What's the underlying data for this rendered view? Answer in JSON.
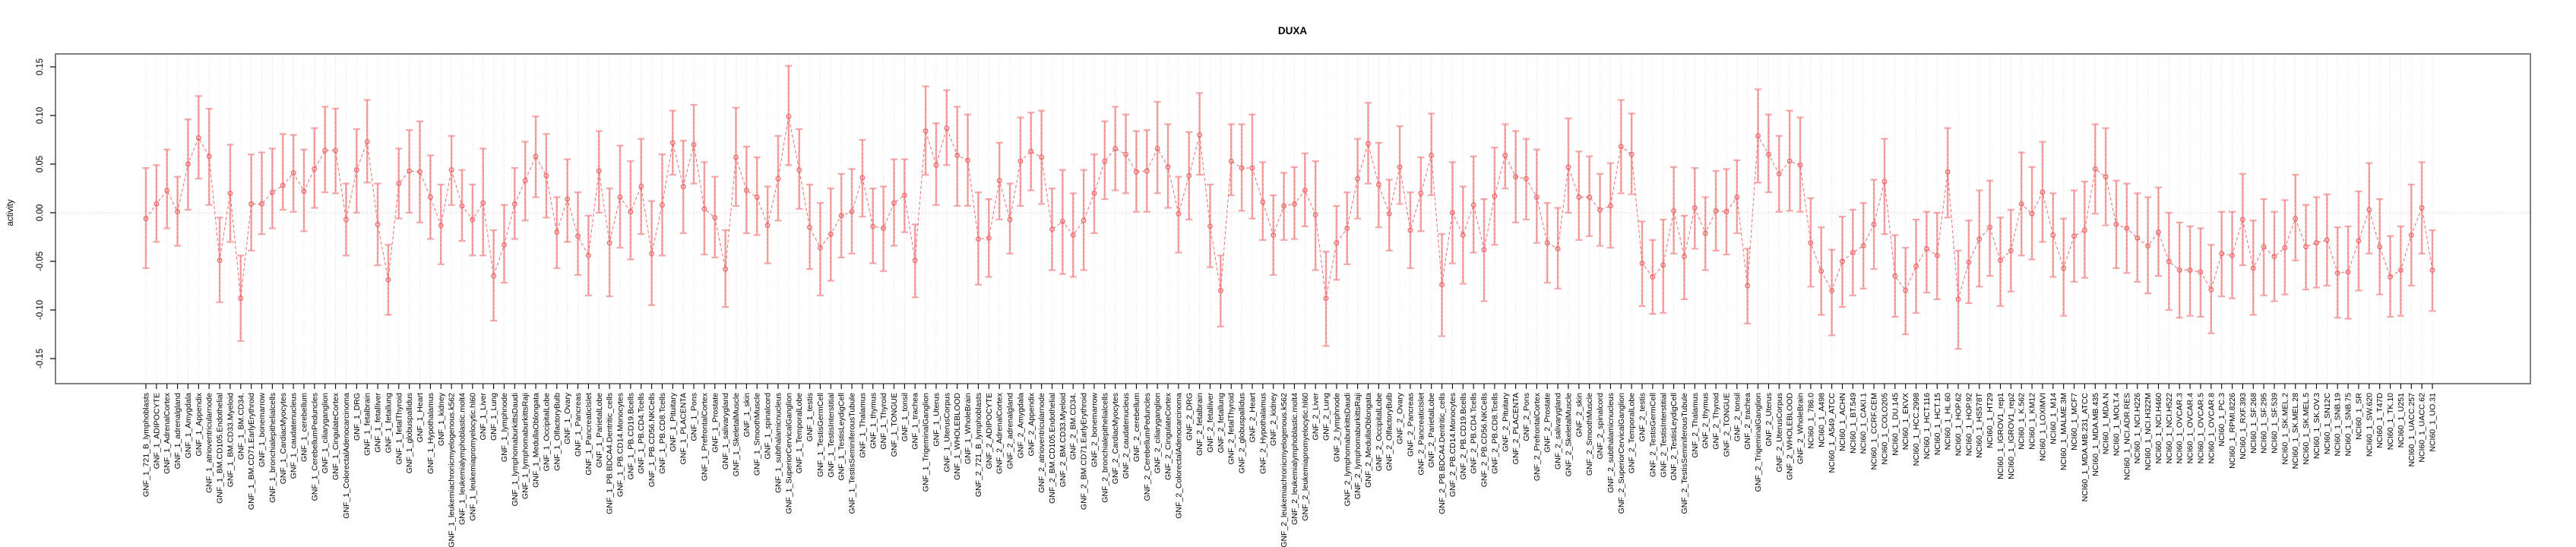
{
  "chart_data": {
    "type": "line",
    "subtype": "points-with-errorbars",
    "title": "DUXA",
    "xlabel": "",
    "ylabel": "activity",
    "yticks": [
      0.15,
      0.1,
      0.05,
      0.0,
      -0.05,
      -0.1,
      -0.15
    ],
    "ylim": [
      -0.176,
      0.163
    ],
    "grid": "vertical-dotted-per-category-plus-zero-line",
    "legend_position": "none",
    "colors": {
      "point": "#ee6a6a",
      "line": "#ee6a6a",
      "errorbar": "#f5a6a6",
      "errorbar_dash": "#ea8080",
      "gridline": "#d4d4d4",
      "zeroline": "#bdbdbd",
      "box": "#808080",
      "text": "#000000"
    },
    "categories": [
      "GNF_1_721_B_lymphoblasts",
      "GNF_1_ADIPOCYTE",
      "GNF_1_AdrenalCortex",
      "GNF_1_adrenalgland",
      "GNF_1_Amygdala",
      "GNF_1_Appendix",
      "GNF_1_atrioventricularnode",
      "GNF_1_BM.CD105.Endothelial",
      "GNF_1_BM.CD33.Myeloid",
      "GNF_1_BM.CD34.",
      "GNF_1_BM.CD71.EarlyErythroid",
      "GNF_1_bonemarrow",
      "GNF_1_bronchialepithelialcells",
      "GNF_1_CardiacMyocytes",
      "GNF_1_caudatenucleus",
      "GNF_1_cerebellum",
      "GNF_1_CerebellumPeduncles",
      "GNF_1_ciliaryganglion",
      "GNF_1_CingulateCortex",
      "GNF_1_ColorectalAdenocarcinoma",
      "GNF_1_DRG",
      "GNF_1_fetalbrain",
      "GNF_1_fetalliver",
      "GNF_1_fetallung",
      "GNF_1_fetalThyroid",
      "GNF_1_globuspallidus",
      "GNF_1_Heart",
      "GNF_1_Hypothalamus",
      "GNF_1_kidney",
      "GNF_1_leukemiachronicmyelogenous.k562",
      "GNF_1_leukemialymphoblastic.molt4",
      "GNF_1_leukemiapromyelocytic.hl60",
      "GNF_1_Liver",
      "GNF_1_Lung",
      "GNF_1_lymphnode",
      "GNF_1_lymphomaburkittsDaudi",
      "GNF_1_lymphomaburkittsRaji",
      "GNF_1_MedullaOblongata",
      "GNF_1_OccipitalLobe",
      "GNF_1_OlfactoryBulb",
      "GNF_1_Ovary",
      "GNF_1_Pancreas",
      "GNF_1_PancreaticIslet",
      "GNF_1_ParietalLobe",
      "GNF_1_PB.BDCA4.Dentritic_cells",
      "GNF_1_PB.CD14.Monocytes",
      "GNF_1_PB.CD19.Bcells",
      "GNF_1_PB.CD4.Tcells",
      "GNF_1_PB.CD56.NKCells",
      "GNF_1_PB.CD8.Tcells",
      "GNF_1_Pituitary",
      "GNF_1_PLACENTA",
      "GNF_1_Pons",
      "GNF_1_PrefrontalCortex",
      "GNF_1_Prostate",
      "GNF_1_salivarygland",
      "GNF_1_SkeletalMuscle",
      "GNF_1_skin",
      "GNF_1_SmoothMuscle",
      "GNF_1_spinalcord",
      "GNF_1_subthalamicnucleus",
      "GNF_1_SuperiorCervicalGanglion",
      "GNF_1_TemporalLobe",
      "GNF_1_testis",
      "GNF_1_TestisGermCell",
      "GNF_1_TestisInterstitial",
      "GNF_1_TestisLeydigCell",
      "GNF_1_TestisSeminiferousTubule",
      "GNF_1_Thalamus",
      "GNF_1_thymus",
      "GNF_1_Thyroid",
      "GNF_1_TONGUE",
      "GNF_1_tonsil",
      "GNF_1_trachea",
      "GNF_1_TrigeminalGanglion",
      "GNF_1_Uterus",
      "GNF_1_UterusCorpus",
      "GNF_1_WHOLEBLOOD",
      "GNF_1_WholeBrain",
      "GNF_2_721_B_lymphoblasts",
      "GNF_2_ADIPOCYTE",
      "GNF_2_AdrenalCortex",
      "GNF_2_adrenalgland",
      "GNF_2_Amygdala",
      "GNF_2_Appendix",
      "GNF_2_atrioventricularnode",
      "GNF_2_BM.CD105.Endothelial",
      "GNF_2_BM.CD33.Myeloid",
      "GNF_2_BM.CD34.",
      "GNF_2_BM.CD71.EarlyErythroid",
      "GNF_2_bonemarrow",
      "GNF_2_bronchialepithelialcells",
      "GNF_2_CardiacMyocytes",
      "GNF_2_caudatenucleus",
      "GNF_2_cerebellum",
      "GNF_2_CerebellumPeduncles",
      "GNF_2_ciliaryganglion",
      "GNF_2_CingulateCortex",
      "GNF_2_ColorectalAdenocarcinoma",
      "GNF_2_DRG",
      "GNF_2_fetalbrain",
      "GNF_2_fetalliver",
      "GNF_2_fetallung",
      "GNF_2_fetalThyroid",
      "GNF_2_globuspallidus",
      "GNF_2_Heart",
      "GNF_2_Hypothalamus",
      "GNF_2_kidney",
      "GNF_2_leukemiachronicmyelogenous.k562",
      "GNF_2_leukemialymphoblastic.molt4",
      "GNF_2_leukemiapromyelocytic.hl60",
      "GNF_2_Liver",
      "GNF_2_Lung",
      "GNF_2_lymphnode",
      "GNF_2_lymphomaburkittsDaudi",
      "GNF_2_lymphomaburkittsRaji",
      "GNF_2_MedullaOblongata",
      "GNF_2_OccipitalLobe",
      "GNF_2_OlfactoryBulb",
      "GNF_2_Ovary",
      "GNF_2_Pancreas",
      "GNF_2_PancreaticIslet",
      "GNF_2_ParietalLobe",
      "GNF_2_PB.BDCA4.Dentritic_cells",
      "GNF_2_PB.CD14.Monocytes",
      "GNF_2_PB.CD19.Bcells",
      "GNF_2_PB.CD4.Tcells",
      "GNF_2_PB.CD56.NKCells",
      "GNF_2_PB.CD8.Tcells",
      "GNF_2_Pituitary",
      "GNF_2_PLACENTA",
      "GNF_2_Pons",
      "GNF_2_PrefrontalCortex",
      "GNF_2_Prostate",
      "GNF_2_salivarygland",
      "GNF_2_SkeletalMuscle",
      "GNF_2_skin",
      "GNF_2_SmoothMuscle",
      "GNF_2_spinalcord",
      "GNF_2_subthalamicnucleus",
      "GNF_2_SuperiorCervicalGanglion",
      "GNF_2_TemporalLobe",
      "GNF_2_testis",
      "GNF_2_TestisGermCell",
      "GNF_2_TestisInterstitial",
      "GNF_2_TestisLeydigCell",
      "GNF_2_TestisSeminiferousTubule",
      "GNF_2_Thalamus",
      "GNF_2_thymus",
      "GNF_2_Thyroid",
      "GNF_2_TONGUE",
      "GNF_2_tonsil",
      "GNF_2_trachea",
      "GNF_2_TrigeminalGanglion",
      "GNF_2_Uterus",
      "GNF_2_UterusCorpus",
      "GNF_2_WHOLEBLOOD",
      "GNF_2_WholeBrain",
      "NCI60_1_786.0",
      "NCI60_1_A498",
      "NCI60_1_A549_ATCC",
      "NCI60_1_ACHN",
      "NCI60_1_BT.549",
      "NCI60_1_CAKI.1",
      "NCI60_1_CCRF.CEM",
      "NCI60_1_COLO205",
      "NCI60_1_DU.145",
      "NCI60_1_EKVX",
      "NCI60_1_HCC.2998",
      "NCI60_1_HCT.116",
      "NCI60_1_HCT.15",
      "NCI60_1_HL.60",
      "NCI60_1_HOP.62",
      "NCI60_1_HOP.92",
      "NCI60_1_HS578T",
      "NCI60_1_HT29",
      "NCI60_1_IGROV1_rep1",
      "NCI60_1_IGROV1_rep2",
      "NCI60_1_K.562",
      "NCI60_1_KM12",
      "NCI60_1_LOXIMVI",
      "NCI60_1_M14",
      "NCI60_1_MALME.3M",
      "NCI60_1_MCF7",
      "NCI60_1_MDA.MB.231_ATCC",
      "NCI60_1_MDA.MB.435",
      "NCI60_1_MDA.N",
      "NCI60_1_MOLT.4",
      "NCI60_1_NCI.ADR.RES",
      "NCI60_1_NCI.H226",
      "NCI60_1_NCI.H322M",
      "NCI60_1_NCI.H460",
      "NCI60_1_NCI.H522",
      "NCI60_1_OVCAR.3",
      "NCI60_1_OVCAR.4",
      "NCI60_1_OVCAR.5",
      "NCI60_1_OVCAR.8",
      "NCI60_1_PC.3",
      "NCI60_1_RPMI.8226",
      "NCI60_1_RXF.393",
      "NCI60_1_SF.268",
      "NCI60_1_SF.295",
      "NCI60_1_SF.539",
      "NCI60_1_SK.MEL.2",
      "NCI60_1_SK.MEL.28",
      "NCI60_1_SK.MEL.5",
      "NCI60_1_SK.OV.3",
      "NCI60_1_SN12C",
      "NCI60_1_SNB.19",
      "NCI60_1_SNB.75",
      "NCI60_1_SR",
      "NCI60_1_SW.620",
      "NCI60_1_T47D",
      "NCI60_1_TK.10",
      "NCI60_1_U251",
      "NCI60_1_UACC.257",
      "NCI60_1_UACC.62",
      "NCI60_1_UO.31"
    ],
    "series": [
      {
        "name": "activity",
        "values": [
          -0.006,
          0.009,
          0.023,
          0.001,
          0.05,
          0.077,
          0.058,
          -0.049,
          0.02,
          -0.088,
          0.009,
          0.009,
          0.021,
          0.028,
          0.041,
          0.022,
          0.045,
          0.064,
          0.064,
          -0.007,
          0.044,
          0.073,
          -0.012,
          -0.069,
          0.03,
          0.043,
          0.042,
          0.016,
          -0.013,
          0.044,
          0.007,
          -0.007,
          0.01,
          -0.065,
          -0.033,
          0.009,
          0.033,
          0.058,
          0.038,
          -0.02,
          0.014,
          -0.024,
          -0.044,
          0.043,
          -0.031,
          0.016,
          0.001,
          0.027,
          -0.042,
          0.008,
          0.072,
          0.027,
          0.07,
          0.004,
          -0.005,
          -0.058,
          0.057,
          0.023,
          0.016,
          -0.013,
          0.035,
          0.099,
          0.044,
          -0.015,
          -0.036,
          -0.022,
          -0.003,
          0.001,
          0.036,
          -0.014,
          -0.016,
          0.01,
          0.018,
          -0.049,
          0.084,
          0.049,
          0.087,
          0.059,
          0.054,
          -0.027,
          -0.026,
          0.033,
          -0.007,
          0.053,
          0.063,
          0.057,
          -0.017,
          -0.009,
          -0.023,
          -0.008,
          0.02,
          0.053,
          0.066,
          0.06,
          0.042,
          0.043,
          0.066,
          0.047,
          -0.001,
          0.038,
          0.08,
          -0.014,
          -0.08,
          0.053,
          0.046,
          0.046,
          0.011,
          -0.023,
          0.007,
          0.009,
          0.023,
          -0.002,
          -0.088,
          -0.031,
          -0.016,
          0.035,
          0.071,
          0.029,
          -0.001,
          0.047,
          -0.018,
          0.02,
          0.059,
          -0.074,
          0.0,
          -0.023,
          0.008,
          -0.038,
          0.017,
          0.059,
          0.037,
          0.035,
          0.016,
          -0.031,
          -0.037,
          0.047,
          0.016,
          0.016,
          0.003,
          0.007,
          0.068,
          0.06,
          -0.052,
          -0.066,
          -0.054,
          0.002,
          -0.045,
          0.005,
          -0.021,
          0.002,
          0.001,
          0.016,
          -0.075,
          0.079,
          0.06,
          0.04,
          0.053,
          0.049,
          -0.031,
          -0.06,
          -0.08,
          -0.05,
          -0.041,
          -0.034,
          -0.012,
          0.032,
          -0.065,
          -0.08,
          -0.055,
          -0.037,
          -0.044,
          0.042,
          -0.089,
          -0.051,
          -0.027,
          -0.015,
          -0.049,
          -0.039,
          0.009,
          -0.001,
          0.021,
          -0.023,
          -0.057,
          -0.024,
          -0.018,
          0.045,
          0.037,
          -0.012,
          -0.016,
          -0.026,
          -0.034,
          -0.02,
          -0.05,
          -0.059,
          -0.059,
          -0.061,
          -0.079,
          -0.042,
          -0.044,
          -0.007,
          -0.057,
          -0.035,
          -0.045,
          -0.036,
          -0.006,
          -0.035,
          -0.031,
          -0.028,
          -0.062,
          -0.061,
          -0.029,
          0.003,
          -0.035,
          -0.066,
          -0.059,
          -0.023,
          0.005,
          -0.059
        ],
        "err_lo": [
          -0.057,
          -0.03,
          -0.016,
          -0.034,
          0.003,
          0.035,
          0.008,
          -0.092,
          -0.03,
          -0.132,
          -0.039,
          -0.022,
          -0.016,
          0.003,
          0.001,
          -0.019,
          0.005,
          0.021,
          0.02,
          -0.044,
          0.0,
          0.031,
          -0.054,
          -0.105,
          -0.006,
          0.0,
          -0.01,
          -0.027,
          -0.053,
          0.008,
          -0.029,
          -0.044,
          -0.044,
          -0.111,
          -0.072,
          -0.027,
          -0.008,
          0.016,
          -0.005,
          -0.057,
          -0.03,
          -0.064,
          -0.085,
          0.0,
          -0.086,
          -0.036,
          -0.048,
          -0.022,
          -0.095,
          -0.044,
          0.039,
          -0.021,
          0.03,
          -0.043,
          -0.046,
          -0.097,
          0.007,
          -0.021,
          -0.023,
          -0.052,
          -0.008,
          0.049,
          0.004,
          -0.058,
          -0.085,
          -0.07,
          -0.046,
          -0.042,
          -0.004,
          -0.052,
          -0.06,
          -0.034,
          -0.02,
          -0.087,
          0.039,
          0.008,
          0.049,
          0.007,
          0.007,
          -0.074,
          -0.066,
          -0.007,
          -0.042,
          0.007,
          0.023,
          0.009,
          -0.059,
          -0.063,
          -0.066,
          -0.059,
          -0.021,
          0.014,
          0.023,
          0.02,
          0.001,
          0.001,
          0.02,
          0.005,
          -0.041,
          -0.007,
          0.039,
          -0.056,
          -0.117,
          0.018,
          0.002,
          -0.006,
          -0.028,
          -0.064,
          -0.028,
          -0.027,
          -0.014,
          -0.059,
          -0.137,
          -0.069,
          -0.053,
          -0.006,
          0.03,
          -0.015,
          -0.039,
          0.009,
          -0.057,
          -0.019,
          0.018,
          -0.127,
          -0.052,
          -0.073,
          -0.041,
          -0.091,
          -0.033,
          0.025,
          -0.01,
          -0.007,
          -0.031,
          -0.072,
          -0.078,
          0.0,
          -0.028,
          -0.024,
          -0.034,
          -0.036,
          0.02,
          0.019,
          -0.096,
          -0.104,
          -0.103,
          -0.042,
          -0.089,
          -0.037,
          -0.059,
          -0.039,
          -0.043,
          -0.021,
          -0.114,
          0.031,
          0.021,
          0.001,
          0.002,
          0.001,
          -0.076,
          -0.105,
          -0.126,
          -0.097,
          -0.085,
          -0.078,
          -0.058,
          -0.022,
          -0.107,
          -0.125,
          -0.103,
          -0.082,
          -0.089,
          -0.005,
          -0.14,
          -0.093,
          -0.076,
          -0.065,
          -0.096,
          -0.081,
          -0.044,
          -0.048,
          -0.03,
          -0.066,
          -0.106,
          -0.071,
          -0.067,
          -0.001,
          -0.013,
          -0.057,
          -0.062,
          -0.071,
          -0.083,
          -0.065,
          -0.1,
          -0.108,
          -0.106,
          -0.107,
          -0.124,
          -0.086,
          -0.088,
          -0.054,
          -0.105,
          -0.085,
          -0.091,
          -0.084,
          -0.049,
          -0.079,
          -0.077,
          -0.075,
          -0.108,
          -0.109,
          -0.08,
          -0.042,
          -0.084,
          -0.107,
          -0.106,
          -0.075,
          -0.042,
          -0.101
        ],
        "err_hi": [
          0.046,
          0.049,
          0.065,
          0.037,
          0.096,
          0.12,
          0.107,
          -0.005,
          0.07,
          -0.044,
          0.06,
          0.062,
          0.066,
          0.081,
          0.08,
          0.065,
          0.087,
          0.109,
          0.107,
          0.03,
          0.086,
          0.116,
          0.03,
          -0.033,
          0.066,
          0.085,
          0.094,
          0.059,
          0.029,
          0.079,
          0.044,
          0.029,
          0.066,
          -0.018,
          0.008,
          0.046,
          0.073,
          0.099,
          0.081,
          0.016,
          0.055,
          0.021,
          -0.003,
          0.084,
          0.025,
          0.069,
          0.053,
          0.076,
          0.012,
          0.06,
          0.105,
          0.074,
          0.111,
          0.052,
          0.037,
          -0.018,
          0.108,
          0.068,
          0.057,
          0.027,
          0.079,
          0.151,
          0.086,
          0.029,
          0.01,
          0.025,
          0.04,
          0.045,
          0.075,
          0.025,
          0.027,
          0.055,
          0.055,
          -0.012,
          0.13,
          0.092,
          0.126,
          0.109,
          0.101,
          0.021,
          0.014,
          0.072,
          0.03,
          0.098,
          0.103,
          0.105,
          0.025,
          0.044,
          0.02,
          0.044,
          0.06,
          0.094,
          0.109,
          0.101,
          0.084,
          0.085,
          0.114,
          0.091,
          0.037,
          0.083,
          0.123,
          0.029,
          -0.044,
          0.091,
          0.091,
          0.101,
          0.052,
          0.018,
          0.041,
          0.047,
          0.061,
          0.053,
          -0.04,
          0.007,
          0.021,
          0.076,
          0.113,
          0.072,
          0.034,
          0.089,
          0.021,
          0.057,
          0.102,
          -0.022,
          0.052,
          0.027,
          0.058,
          0.014,
          0.067,
          0.091,
          0.084,
          0.076,
          0.065,
          0.01,
          0.005,
          0.097,
          0.063,
          0.058,
          0.04,
          0.051,
          0.116,
          0.102,
          -0.009,
          -0.028,
          -0.007,
          0.047,
          -0.003,
          0.046,
          0.016,
          0.043,
          0.045,
          0.054,
          -0.037,
          0.127,
          0.101,
          0.079,
          0.105,
          0.098,
          0.015,
          -0.015,
          -0.038,
          -0.004,
          0.003,
          0.01,
          0.034,
          0.076,
          -0.023,
          -0.036,
          -0.007,
          0.001,
          0.0,
          0.087,
          -0.039,
          -0.008,
          0.023,
          0.033,
          -0.005,
          0.003,
          0.062,
          0.047,
          0.073,
          0.02,
          -0.006,
          0.023,
          0.032,
          0.091,
          0.087,
          0.033,
          0.03,
          0.02,
          0.016,
          0.026,
          0.0,
          -0.01,
          -0.014,
          -0.016,
          -0.033,
          0.001,
          0.001,
          0.04,
          -0.008,
          0.014,
          0.001,
          0.013,
          0.039,
          0.008,
          0.016,
          0.019,
          -0.015,
          -0.014,
          0.022,
          0.051,
          0.014,
          -0.024,
          -0.014,
          0.029,
          0.052,
          -0.018
        ]
      }
    ]
  }
}
